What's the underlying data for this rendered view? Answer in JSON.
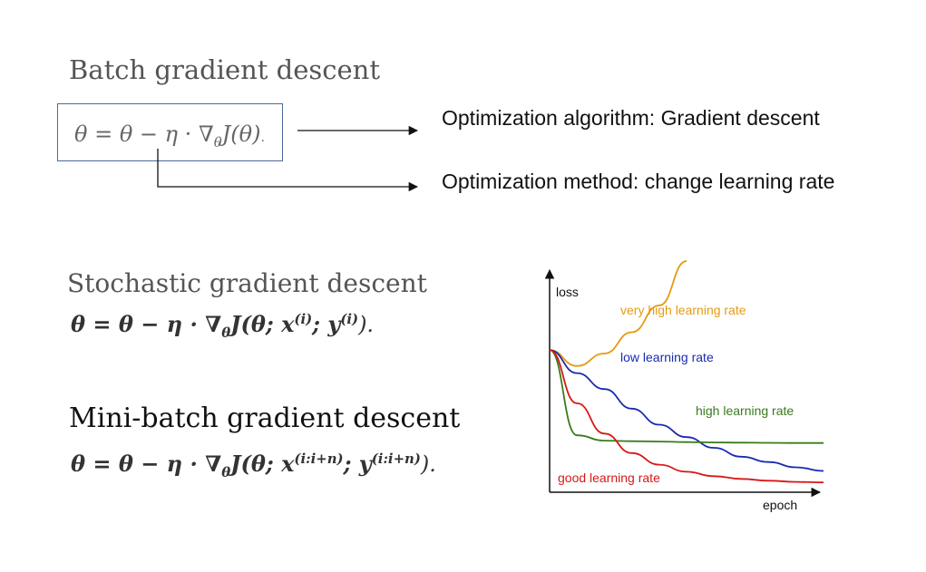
{
  "batch": {
    "heading": "Batch gradient descent",
    "formula": {
      "theta": "θ",
      "eq": " = ",
      "minus": " − ",
      "eta": "η",
      "dot": " · ",
      "nabla": "∇",
      "sub_theta": "θ",
      "J": "J",
      "arg": "(θ)",
      "end": "."
    }
  },
  "annotations": {
    "algorithm": "Optimization algorithm: Gradient descent",
    "method": "Optimization method: change learning rate"
  },
  "sgd": {
    "heading": "Stochastic gradient descent",
    "formula": {
      "lhs": "θ = θ − η · ∇",
      "sub": "θ",
      "mid": "J(θ; x",
      "sup1": "(i)",
      "sep": "; y",
      "sup2": "(i)",
      "end": ")."
    }
  },
  "minibatch": {
    "heading": "Mini-batch gradient descent",
    "formula": {
      "lhs": "θ = θ − η · ∇",
      "sub": "θ",
      "mid": "J(θ; x",
      "sup1": "(i:i+n)",
      "sep": "; y",
      "sup2": "(i:i+n)",
      "end": ")."
    }
  },
  "chart_data": {
    "type": "line",
    "xlabel": "epoch",
    "ylabel": "loss",
    "x": [
      0,
      1,
      2,
      3,
      4,
      5,
      6,
      7,
      8,
      9,
      10
    ],
    "series": [
      {
        "name": "very high learning rate",
        "color": "#e69a10",
        "values": [
          0.8,
          0.71,
          0.78,
          0.9,
          1.05,
          1.3,
          null,
          null,
          null,
          null,
          null
        ]
      },
      {
        "name": "low learning rate",
        "color": "#1a2ab0",
        "values": [
          0.8,
          0.67,
          0.58,
          0.47,
          0.38,
          0.31,
          0.25,
          0.2,
          0.17,
          0.14,
          0.12
        ]
      },
      {
        "name": "high learning rate",
        "color": "#3a7a1c",
        "values": [
          0.8,
          0.32,
          0.29,
          0.287,
          0.285,
          0.282,
          0.28,
          0.279,
          0.278,
          0.277,
          0.277
        ]
      },
      {
        "name": "good learning rate",
        "color": "#d81818",
        "values": [
          0.8,
          0.5,
          0.33,
          0.22,
          0.155,
          0.115,
          0.09,
          0.075,
          0.065,
          0.058,
          0.055
        ]
      }
    ]
  }
}
